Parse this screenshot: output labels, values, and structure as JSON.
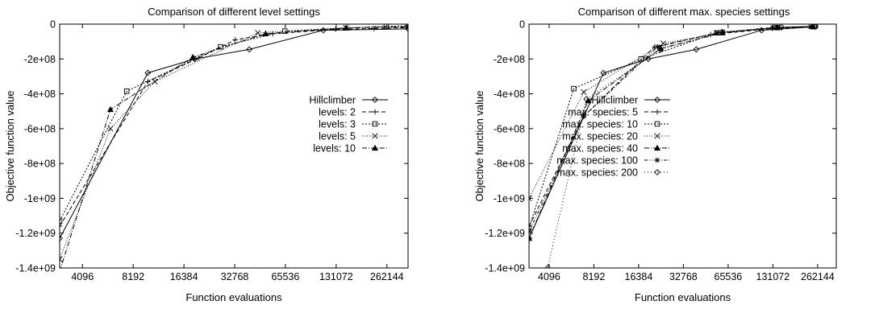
{
  "chart_data": [
    {
      "type": "line",
      "title": "Comparison of different level settings",
      "xlabel": "Function evaluations",
      "ylabel": "Objective function value",
      "x_scale": "log2",
      "xlim": [
        3000,
        350000
      ],
      "ylim": [
        -1400000000,
        0
      ],
      "x_ticks": [
        4096,
        8192,
        16384,
        32768,
        65536,
        131072,
        262144
      ],
      "x_tick_labels": [
        "4096",
        "8192",
        "16384",
        "32768",
        "65536",
        "131072",
        "262144"
      ],
      "y_ticks": [
        0,
        -200000000,
        -400000000,
        -600000000,
        -800000000,
        -1000000000,
        -1200000000,
        -1400000000
      ],
      "y_tick_labels": [
        "0",
        "-2e+08",
        "-4e+08",
        "-6e+08",
        "-8e+08",
        "-1e+09",
        "-1.2e+09",
        "-1.4e+09"
      ],
      "grid": false,
      "legend_position": "right",
      "series": [
        {
          "name": "Hillclimber",
          "marker": "diamond",
          "dash": "",
          "x": [
            3000,
            10000,
            19000,
            40000,
            110000,
            350000
          ],
          "y": [
            -1230000000,
            -280000000,
            -200000000,
            -145000000,
            -35000000,
            -27000000
          ]
        },
        {
          "name": "levels: 2",
          "marker": "plus",
          "dash": "5,3",
          "x": [
            3000,
            10000,
            20000,
            33000,
            55000,
            130000,
            220000,
            350000
          ],
          "y": [
            -1160000000,
            -330000000,
            -195000000,
            -90000000,
            -55000000,
            -30000000,
            -25000000,
            -20000000
          ]
        },
        {
          "name": "levels: 3",
          "marker": "square",
          "dash": "2,2",
          "x": [
            3000,
            7500,
            27000,
            65000,
            260000,
            350000
          ],
          "y": [
            -1130000000,
            -385000000,
            -130000000,
            -40000000,
            -12000000,
            -10000000
          ]
        },
        {
          "name": "levels: 5",
          "marker": "cross",
          "dash": "1,2",
          "x": [
            3000,
            6000,
            11000,
            45000,
            150000,
            350000
          ],
          "y": [
            -1350000000,
            -600000000,
            -330000000,
            -50000000,
            -20000000,
            -15000000
          ]
        },
        {
          "name": "levels: 10",
          "marker": "triangle",
          "dash": "6,2,1,2",
          "x": [
            3000,
            6000,
            18500,
            50000,
            150000,
            350000
          ],
          "y": [
            -1420000000,
            -490000000,
            -190000000,
            -55000000,
            -22000000,
            -15000000
          ]
        }
      ]
    },
    {
      "type": "line",
      "title": "Comparison of different max. species settings",
      "xlabel": "Function evaluations",
      "ylabel": "Objective function value",
      "x_scale": "log2",
      "xlim": [
        3000,
        350000
      ],
      "ylim": [
        -1400000000,
        0
      ],
      "x_ticks": [
        4096,
        8192,
        16384,
        32768,
        65536,
        131072,
        262144
      ],
      "x_tick_labels": [
        "4096",
        "8192",
        "16384",
        "32768",
        "65536",
        "131072",
        "262144"
      ],
      "y_ticks": [
        0,
        -200000000,
        -400000000,
        -600000000,
        -800000000,
        -1000000000,
        -1200000000,
        -1400000000
      ],
      "y_tick_labels": [
        "0",
        "-2e+08",
        "-4e+08",
        "-6e+08",
        "-8e+08",
        "-1e+09",
        "-1.2e+09",
        "-1.4e+09"
      ],
      "grid": false,
      "legend_position": "right",
      "series": [
        {
          "name": "Hillclimber",
          "marker": "diamond",
          "dash": "",
          "x": [
            3000,
            9500,
            19000,
            40000,
            110000,
            250000
          ],
          "y": [
            -1230000000,
            -280000000,
            -200000000,
            -145000000,
            -35000000,
            -15000000
          ]
        },
        {
          "name": "max. species: 5",
          "marker": "plus",
          "dash": "5,3",
          "x": [
            3000,
            7000,
            21000,
            50000,
            130000,
            240000
          ],
          "y": [
            -1160000000,
            -530000000,
            -130000000,
            -60000000,
            -25000000,
            -17000000
          ]
        },
        {
          "name": "max. species: 10",
          "marker": "square",
          "dash": "2,2",
          "x": [
            3000,
            6000,
            17000,
            55000,
            140000,
            250000
          ],
          "y": [
            -1170000000,
            -370000000,
            -200000000,
            -50000000,
            -20000000,
            -14000000
          ]
        },
        {
          "name": "max. species: 20",
          "marker": "cross",
          "dash": "1,2",
          "x": [
            3000,
            7000,
            24000,
            60000,
            140000,
            240000
          ],
          "y": [
            -1000000000,
            -390000000,
            -110000000,
            -48000000,
            -18000000,
            -12000000
          ]
        },
        {
          "name": "max. species: 40",
          "marker": "triangle",
          "dash": "6,2,1,2",
          "x": [
            3000,
            7500,
            23000,
            60000,
            140000,
            245000
          ],
          "y": [
            -1230000000,
            -440000000,
            -140000000,
            -50000000,
            -20000000,
            -13000000
          ]
        },
        {
          "name": "max. species: 100",
          "marker": "star",
          "dash": "4,2,1,2,1,2",
          "x": [
            3000,
            7000,
            22000,
            55000,
            130000,
            235000
          ],
          "y": [
            -1190000000,
            -530000000,
            -130000000,
            -50000000,
            -20000000,
            -15000000
          ]
        },
        {
          "name": "max. species: 200",
          "marker": "diamond",
          "dash": "1,3",
          "x": [
            4000,
            7300,
            23000,
            60000,
            150000,
            250000
          ],
          "y": [
            -1400000000,
            -430000000,
            -145000000,
            -45000000,
            -18000000,
            -13000000
          ]
        }
      ]
    }
  ]
}
